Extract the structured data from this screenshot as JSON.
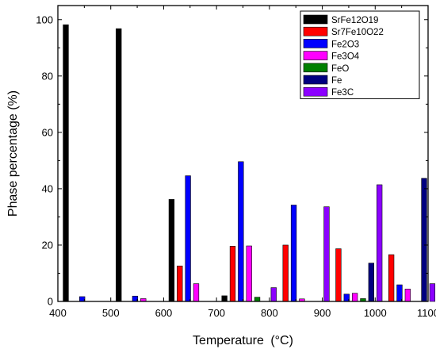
{
  "chart_data": {
    "type": "bar",
    "xlabel": "Temperature",
    "xlabel_unit": "(°C)",
    "ylabel": "Phase percentage (%)",
    "xlim": [
      400,
      1100
    ],
    "ylim": [
      0,
      105
    ],
    "xticks": [
      400,
      500,
      600,
      700,
      800,
      900,
      1000,
      1100
    ],
    "yticks": [
      0,
      20,
      40,
      60,
      80,
      100
    ],
    "x_groups": [
      400,
      500,
      600,
      700,
      800,
      900,
      1000
    ],
    "legend_position": "top-right",
    "grid": false,
    "series": [
      {
        "name": "SrFe12O19",
        "color": "#000000",
        "values": [
          98.2,
          96.8,
          36.2,
          2.0,
          0,
          0,
          0
        ]
      },
      {
        "name": "Sr7Fe10O22",
        "color": "#ff0000",
        "values": [
          0,
          0,
          12.6,
          19.6,
          20.0,
          18.7,
          16.6
        ]
      },
      {
        "name": "Fe2O3",
        "color": "#0000ff",
        "values": [
          1.7,
          1.9,
          44.6,
          49.6,
          34.2,
          2.6,
          5.9
        ]
      },
      {
        "name": "Fe3O4",
        "color": "#ff00ff",
        "values": [
          0,
          1.0,
          6.3,
          19.7,
          0.9,
          2.9,
          4.4
        ]
      },
      {
        "name": "FeO",
        "color": "#008000",
        "values": [
          0,
          0,
          0,
          1.5,
          0,
          1.0,
          0
        ]
      },
      {
        "name": "Fe",
        "color": "#000080",
        "values": [
          0,
          0,
          0,
          0,
          0,
          13.6,
          43.7
        ]
      },
      {
        "name": "Fe3C",
        "color": "#8b00ff",
        "values": [
          0,
          0,
          0,
          4.9,
          33.6,
          41.4,
          6.3
        ]
      }
    ]
  }
}
